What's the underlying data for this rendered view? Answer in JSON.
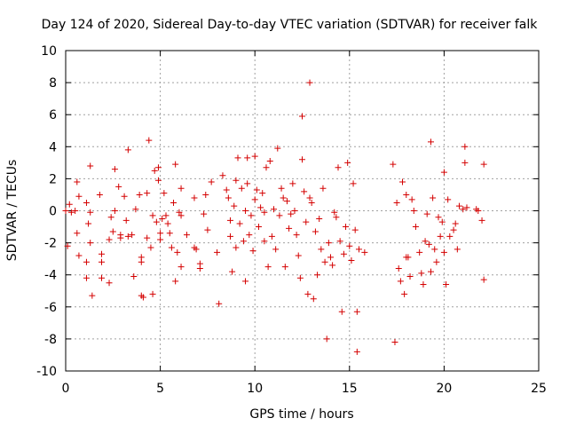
{
  "chart_data": {
    "type": "scatter",
    "title": "Day 124 of 2020, Sidereal Day-to-day VTEC variation (SDTVAR) for receiver falk",
    "xlabel": "GPS time / hours",
    "ylabel": "SDTVAR / TECUs",
    "xlim": [
      0,
      25
    ],
    "ylim": [
      -10,
      10
    ],
    "xticks": [
      0,
      5,
      10,
      15,
      20,
      25
    ],
    "yticks": [
      -10,
      -8,
      -6,
      -4,
      -2,
      0,
      2,
      4,
      6,
      8,
      10
    ],
    "grid": true,
    "marker": "plus",
    "color": "#d40000",
    "series": [
      {
        "name": "SDTVAR",
        "points": [
          [
            0.0,
            0.0
          ],
          [
            0.1,
            -2.2
          ],
          [
            0.2,
            0.4
          ],
          [
            0.3,
            -0.1
          ],
          [
            0.5,
            0.0
          ],
          [
            0.6,
            1.8
          ],
          [
            0.6,
            -1.4
          ],
          [
            0.7,
            0.9
          ],
          [
            0.7,
            -2.8
          ],
          [
            1.1,
            0.5
          ],
          [
            1.1,
            -3.2
          ],
          [
            1.1,
            -4.2
          ],
          [
            1.2,
            -0.8
          ],
          [
            1.3,
            -0.1
          ],
          [
            1.3,
            -2.0
          ],
          [
            1.3,
            2.8
          ],
          [
            1.4,
            -5.3
          ],
          [
            1.8,
            1.0
          ],
          [
            1.9,
            -2.7
          ],
          [
            1.9,
            -3.2
          ],
          [
            1.9,
            -4.2
          ],
          [
            2.3,
            -4.5
          ],
          [
            2.3,
            -1.8
          ],
          [
            2.4,
            -0.4
          ],
          [
            2.5,
            -1.3
          ],
          [
            2.6,
            0.0
          ],
          [
            2.6,
            2.6
          ],
          [
            2.8,
            1.5
          ],
          [
            2.9,
            -1.5
          ],
          [
            2.9,
            -1.7
          ],
          [
            3.1,
            0.9
          ],
          [
            3.2,
            -0.6
          ],
          [
            3.3,
            3.8
          ],
          [
            3.3,
            -1.6
          ],
          [
            3.5,
            -1.5
          ],
          [
            3.6,
            -4.1
          ],
          [
            3.7,
            0.1
          ],
          [
            3.9,
            1.0
          ],
          [
            4.0,
            -2.9
          ],
          [
            4.0,
            -3.2
          ],
          [
            4.0,
            -5.3
          ],
          [
            4.1,
            -5.4
          ],
          [
            4.3,
            1.1
          ],
          [
            4.3,
            -1.7
          ],
          [
            4.4,
            4.4
          ],
          [
            4.5,
            -2.3
          ],
          [
            4.6,
            -0.3
          ],
          [
            4.6,
            -5.2
          ],
          [
            4.7,
            2.5
          ],
          [
            4.8,
            -0.7
          ],
          [
            4.9,
            2.7
          ],
          [
            4.9,
            1.9
          ],
          [
            5.0,
            -1.4
          ],
          [
            5.0,
            -1.8
          ],
          [
            5.1,
            -0.5
          ],
          [
            5.2,
            1.1
          ],
          [
            5.3,
            -0.3
          ],
          [
            5.4,
            -0.8
          ],
          [
            5.5,
            -1.4
          ],
          [
            5.6,
            -2.3
          ],
          [
            5.7,
            0.5
          ],
          [
            5.8,
            2.9
          ],
          [
            5.8,
            -4.4
          ],
          [
            5.9,
            -2.6
          ],
          [
            6.0,
            -0.1
          ],
          [
            6.1,
            -0.3
          ],
          [
            6.1,
            -3.5
          ],
          [
            6.1,
            1.4
          ],
          [
            6.4,
            -1.5
          ],
          [
            6.8,
            0.8
          ],
          [
            6.8,
            -2.3
          ],
          [
            6.9,
            -2.4
          ],
          [
            7.1,
            -3.3
          ],
          [
            7.1,
            -3.6
          ],
          [
            7.3,
            -0.2
          ],
          [
            7.4,
            1.0
          ],
          [
            7.5,
            -1.2
          ],
          [
            7.7,
            1.8
          ],
          [
            8.0,
            -2.6
          ],
          [
            8.1,
            -5.8
          ],
          [
            8.3,
            2.2
          ],
          [
            8.5,
            1.3
          ],
          [
            8.6,
            0.8
          ],
          [
            8.7,
            -0.6
          ],
          [
            8.7,
            -1.6
          ],
          [
            8.8,
            -3.8
          ],
          [
            8.9,
            0.3
          ],
          [
            9.0,
            1.9
          ],
          [
            9.0,
            -2.3
          ],
          [
            9.1,
            3.3
          ],
          [
            9.2,
            -0.8
          ],
          [
            9.3,
            1.4
          ],
          [
            9.4,
            -1.9
          ],
          [
            9.5,
            0.0
          ],
          [
            9.5,
            -4.4
          ],
          [
            9.6,
            3.3
          ],
          [
            9.6,
            1.7
          ],
          [
            9.7,
            -1.5
          ],
          [
            9.8,
            -0.3
          ],
          [
            9.9,
            -2.5
          ],
          [
            10.0,
            0.7
          ],
          [
            10.0,
            3.4
          ],
          [
            10.1,
            1.3
          ],
          [
            10.2,
            -1.0
          ],
          [
            10.3,
            0.2
          ],
          [
            10.4,
            1.1
          ],
          [
            10.5,
            -0.1
          ],
          [
            10.5,
            -1.9
          ],
          [
            10.6,
            2.7
          ],
          [
            10.7,
            -3.5
          ],
          [
            10.8,
            3.1
          ],
          [
            10.9,
            -1.6
          ],
          [
            11.0,
            0.1
          ],
          [
            11.1,
            -2.4
          ],
          [
            11.2,
            3.9
          ],
          [
            11.3,
            -0.3
          ],
          [
            11.4,
            1.4
          ],
          [
            11.5,
            0.8
          ],
          [
            11.6,
            -3.5
          ],
          [
            11.7,
            0.6
          ],
          [
            11.8,
            -1.1
          ],
          [
            11.9,
            -0.2
          ],
          [
            12.0,
            1.7
          ],
          [
            12.1,
            0.0
          ],
          [
            12.2,
            -1.5
          ],
          [
            12.3,
            -2.8
          ],
          [
            12.4,
            -4.2
          ],
          [
            12.5,
            5.9
          ],
          [
            12.5,
            3.2
          ],
          [
            12.6,
            1.2
          ],
          [
            12.7,
            -0.7
          ],
          [
            12.8,
            -5.2
          ],
          [
            12.9,
            8.0
          ],
          [
            12.9,
            0.8
          ],
          [
            13.0,
            0.5
          ],
          [
            13.1,
            -5.5
          ],
          [
            13.2,
            -1.3
          ],
          [
            13.3,
            -4.0
          ],
          [
            13.4,
            -0.5
          ],
          [
            13.5,
            -2.4
          ],
          [
            13.6,
            1.4
          ],
          [
            13.7,
            -3.2
          ],
          [
            13.8,
            -8.0
          ],
          [
            13.9,
            -2.0
          ],
          [
            14.0,
            -2.9
          ],
          [
            14.1,
            -3.4
          ],
          [
            14.2,
            -0.1
          ],
          [
            14.3,
            -0.4
          ],
          [
            14.4,
            2.7
          ],
          [
            14.5,
            -1.9
          ],
          [
            14.6,
            -6.3
          ],
          [
            14.7,
            -2.7
          ],
          [
            14.8,
            -1.0
          ],
          [
            14.9,
            3.0
          ],
          [
            15.0,
            -2.2
          ],
          [
            15.1,
            -3.1
          ],
          [
            15.2,
            1.7
          ],
          [
            15.3,
            -1.2
          ],
          [
            15.4,
            -6.3
          ],
          [
            15.4,
            -8.8
          ],
          [
            15.5,
            -2.4
          ],
          [
            15.8,
            -2.6
          ],
          [
            17.3,
            2.9
          ],
          [
            17.4,
            -8.2
          ],
          [
            17.5,
            0.5
          ],
          [
            17.6,
            -3.6
          ],
          [
            17.7,
            -4.4
          ],
          [
            17.8,
            1.8
          ],
          [
            17.9,
            -5.2
          ],
          [
            18.0,
            1.0
          ],
          [
            18.0,
            -2.9
          ],
          [
            18.1,
            -2.9
          ],
          [
            18.2,
            -4.1
          ],
          [
            18.3,
            0.7
          ],
          [
            18.4,
            0.0
          ],
          [
            18.5,
            -1.0
          ],
          [
            18.7,
            -2.6
          ],
          [
            18.8,
            -3.9
          ],
          [
            18.9,
            -4.6
          ],
          [
            19.0,
            -1.9
          ],
          [
            19.1,
            -0.2
          ],
          [
            19.2,
            -2.1
          ],
          [
            19.3,
            -3.8
          ],
          [
            19.3,
            4.3
          ],
          [
            19.4,
            0.8
          ],
          [
            19.5,
            -2.4
          ],
          [
            19.6,
            -3.2
          ],
          [
            19.7,
            -0.4
          ],
          [
            19.8,
            -1.6
          ],
          [
            19.9,
            -0.7
          ],
          [
            20.0,
            -2.6
          ],
          [
            20.0,
            2.4
          ],
          [
            20.1,
            -4.6
          ],
          [
            20.2,
            0.7
          ],
          [
            20.3,
            -1.6
          ],
          [
            20.5,
            -1.2
          ],
          [
            20.6,
            -0.8
          ],
          [
            20.7,
            -2.4
          ],
          [
            20.8,
            0.3
          ],
          [
            21.0,
            0.1
          ],
          [
            21.1,
            4.0
          ],
          [
            21.1,
            3.0
          ],
          [
            21.2,
            0.2
          ],
          [
            21.7,
            0.1
          ],
          [
            21.8,
            0.0
          ],
          [
            22.0,
            -0.6
          ],
          [
            22.1,
            2.9
          ],
          [
            22.1,
            -4.3
          ]
        ]
      }
    ]
  }
}
